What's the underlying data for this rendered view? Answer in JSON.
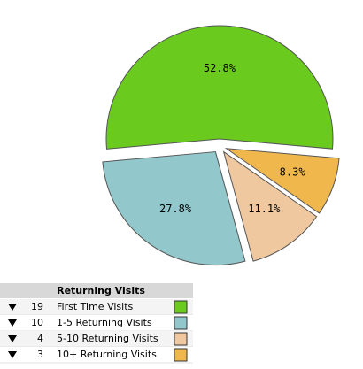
{
  "chart_data": {
    "type": "pie",
    "categories": [
      "First Time Visits",
      "1-5 Returning Visits",
      "5-10 Returning Visits",
      "10+ Returning Visits"
    ],
    "values": [
      52.8,
      27.8,
      11.1,
      8.3
    ],
    "value_labels": [
      "52.8%",
      "27.8%",
      "11.1%",
      "8.3%"
    ],
    "colors": [
      "#6acb1e",
      "#92c8cc",
      "#f0c8a0",
      "#f0b84c"
    ],
    "legend_title": "Returning Visits",
    "counts": [
      19,
      10,
      4,
      3
    ]
  }
}
